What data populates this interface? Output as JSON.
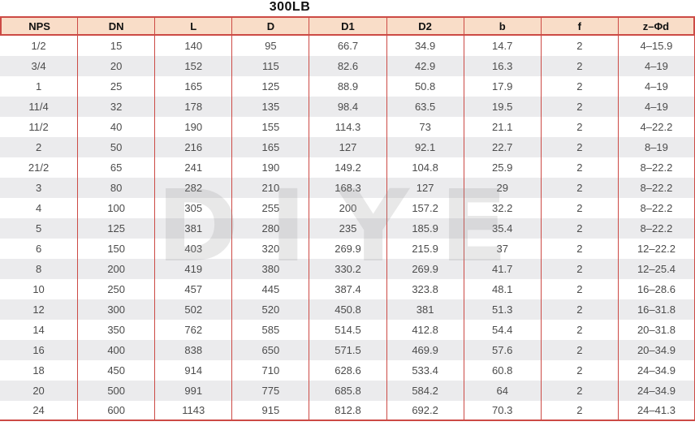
{
  "title": "300LB",
  "watermark": "DIYE",
  "colors": {
    "border": "#cc4a45",
    "header_bg": "#f9ddc8",
    "stripe_bg": "#ebebed"
  },
  "table": {
    "columns": [
      "NPS",
      "DN",
      "L",
      "D",
      "D1",
      "D2",
      "b",
      "f",
      "z–Φd"
    ],
    "rows": [
      [
        "1/2",
        "15",
        "140",
        "95",
        "66.7",
        "34.9",
        "14.7",
        "2",
        "4–15.9"
      ],
      [
        "3/4",
        "20",
        "152",
        "115",
        "82.6",
        "42.9",
        "16.3",
        "2",
        "4–19"
      ],
      [
        "1",
        "25",
        "165",
        "125",
        "88.9",
        "50.8",
        "17.9",
        "2",
        "4–19"
      ],
      [
        "11/4",
        "32",
        "178",
        "135",
        "98.4",
        "63.5",
        "19.5",
        "2",
        "4–19"
      ],
      [
        "11/2",
        "40",
        "190",
        "155",
        "114.3",
        "73",
        "21.1",
        "2",
        "4–22.2"
      ],
      [
        "2",
        "50",
        "216",
        "165",
        "127",
        "92.1",
        "22.7",
        "2",
        "8–19"
      ],
      [
        "21/2",
        "65",
        "241",
        "190",
        "149.2",
        "104.8",
        "25.9",
        "2",
        "8–22.2"
      ],
      [
        "3",
        "80",
        "282",
        "210",
        "168.3",
        "127",
        "29",
        "2",
        "8–22.2"
      ],
      [
        "4",
        "100",
        "305",
        "255",
        "200",
        "157.2",
        "32.2",
        "2",
        "8–22.2"
      ],
      [
        "5",
        "125",
        "381",
        "280",
        "235",
        "185.9",
        "35.4",
        "2",
        "8–22.2"
      ],
      [
        "6",
        "150",
        "403",
        "320",
        "269.9",
        "215.9",
        "37",
        "2",
        "12–22.2"
      ],
      [
        "8",
        "200",
        "419",
        "380",
        "330.2",
        "269.9",
        "41.7",
        "2",
        "12–25.4"
      ],
      [
        "10",
        "250",
        "457",
        "445",
        "387.4",
        "323.8",
        "48.1",
        "2",
        "16–28.6"
      ],
      [
        "12",
        "300",
        "502",
        "520",
        "450.8",
        "381",
        "51.3",
        "2",
        "16–31.8"
      ],
      [
        "14",
        "350",
        "762",
        "585",
        "514.5",
        "412.8",
        "54.4",
        "2",
        "20–31.8"
      ],
      [
        "16",
        "400",
        "838",
        "650",
        "571.5",
        "469.9",
        "57.6",
        "2",
        "20–34.9"
      ],
      [
        "18",
        "450",
        "914",
        "710",
        "628.6",
        "533.4",
        "60.8",
        "2",
        "24–34.9"
      ],
      [
        "20",
        "500",
        "991",
        "775",
        "685.8",
        "584.2",
        "64",
        "2",
        "24–34.9"
      ],
      [
        "24",
        "600",
        "1143",
        "915",
        "812.8",
        "692.2",
        "70.3",
        "2",
        "24–41.3"
      ]
    ]
  }
}
